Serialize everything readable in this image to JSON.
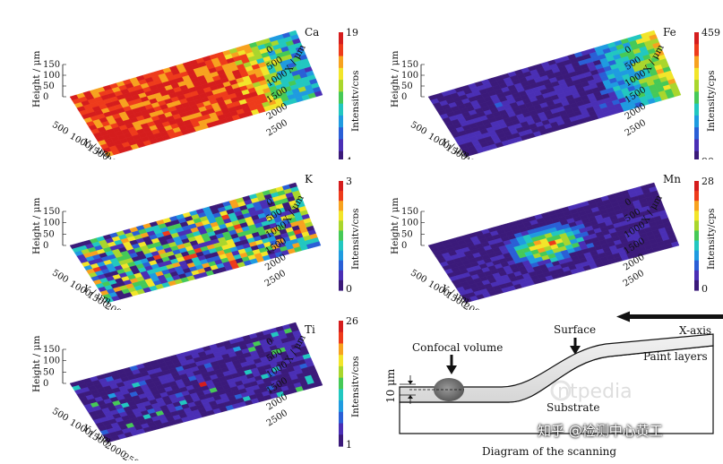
{
  "axis_labels": {
    "height": "Height / μm",
    "y": "Y / μm",
    "x": "X / μm",
    "intensity": "Intensity/cps"
  },
  "height_ticks": [
    "150",
    "100",
    "50",
    "0"
  ],
  "y_ticks": [
    "500",
    "1000",
    "1500",
    "2000",
    "2500"
  ],
  "x_ticks": [
    "0",
    "500",
    "1000",
    "1500",
    "2000",
    "2500"
  ],
  "palette": [
    "#3b1a7a",
    "#4a2fb5",
    "#2a5fd6",
    "#1f9be0",
    "#22c7c0",
    "#46c957",
    "#a9d62d",
    "#f2e52a",
    "#f7a21f",
    "#ee3b1b",
    "#d51d1d"
  ],
  "maps": [
    {
      "element": "Ca",
      "cb_max": "19",
      "cb_min": "4",
      "base": 0.82,
      "noise": 0.55,
      "hot": 0.0
    },
    {
      "element": "Fe",
      "cb_max": "459",
      "cb_min": "90",
      "base": 0.06,
      "noise": 0.18,
      "hot": 0.0
    },
    {
      "element": "K",
      "cb_max": "3",
      "cb_min": "0",
      "base": 0.38,
      "noise": 0.9,
      "hot": 0.0
    },
    {
      "element": "Mn",
      "cb_max": "28",
      "cb_min": "0",
      "base": 0.05,
      "noise": 0.2,
      "hot": 0.9
    },
    {
      "element": "Ti",
      "cb_max": "26",
      "cb_min": "1",
      "base": 0.08,
      "noise": 0.22,
      "hot": 0.0
    }
  ],
  "diagram": {
    "x_axis": "X-axis",
    "surface": "Surface",
    "confocal_volume": "Confocal volume",
    "paint_layers": "Paint layers",
    "substrate": "Substrate",
    "thickness": "10 μm",
    "caption": "Diagram of the scanning"
  },
  "watermark": {
    "text": "知乎 @检测中心黄工",
    "logo": "instrument-pedia-logo"
  }
}
